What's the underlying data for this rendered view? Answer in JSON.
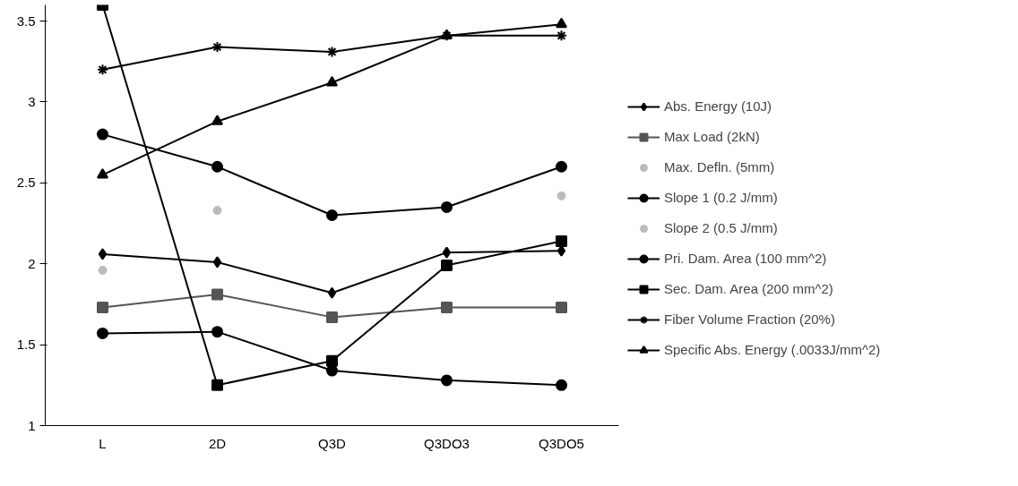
{
  "chart_data": {
    "type": "line",
    "categories": [
      "L",
      "2D",
      "Q3D",
      "Q3DO3",
      "Q3DO5"
    ],
    "ylim": [
      1,
      3.6
    ],
    "yticks": [
      1,
      1.5,
      2,
      2.5,
      3,
      3.5
    ],
    "grid": false,
    "legend": "right",
    "series": [
      {
        "name": "Abs. Energy (10J)",
        "color": "#000000",
        "marker": "diamond",
        "values": [
          2.06,
          2.01,
          1.82,
          2.07,
          2.08
        ]
      },
      {
        "name": "Max Load (2kN)",
        "color": "#555555",
        "marker": "square",
        "values": [
          1.73,
          1.81,
          1.67,
          1.73,
          1.73
        ]
      },
      {
        "name": "Max. Defln. (5mm)",
        "type": "scatter",
        "color": "#bbbbbb",
        "marker": "circle",
        "values": [
          1.96,
          null,
          null,
          null,
          null
        ]
      },
      {
        "name": "Slope 1 (0.2 J/mm)",
        "color": "#000000",
        "marker": "circle",
        "values": [
          2.8,
          2.6,
          2.3,
          2.35,
          2.6
        ]
      },
      {
        "name": "Slope 2 (0.5 J/mm)",
        "type": "scatter",
        "color": "#bbbbbb",
        "marker": "circle",
        "values": [
          null,
          2.33,
          null,
          null,
          2.42
        ]
      },
      {
        "name": "Pri. Dam. Area (100 mm^2)",
        "color": "#000000",
        "marker": "circle",
        "values": [
          1.57,
          1.58,
          1.34,
          1.28,
          1.25
        ]
      },
      {
        "name": "Sec. Dam. Area (200 mm^2)",
        "color": "#000000",
        "marker": "square",
        "values": [
          3.6,
          1.25,
          1.4,
          1.99,
          2.14
        ]
      },
      {
        "name": "Fiber Volume Fraction (20%)",
        "color": "#000000",
        "marker": "cross",
        "values": [
          3.2,
          3.34,
          3.31,
          3.41,
          3.41
        ]
      },
      {
        "name": "Specific Abs. Energy (.0033J/mm^2)",
        "color": "#000000",
        "marker": "triangle",
        "values": [
          2.55,
          2.88,
          3.12,
          3.41,
          3.48
        ]
      }
    ]
  }
}
